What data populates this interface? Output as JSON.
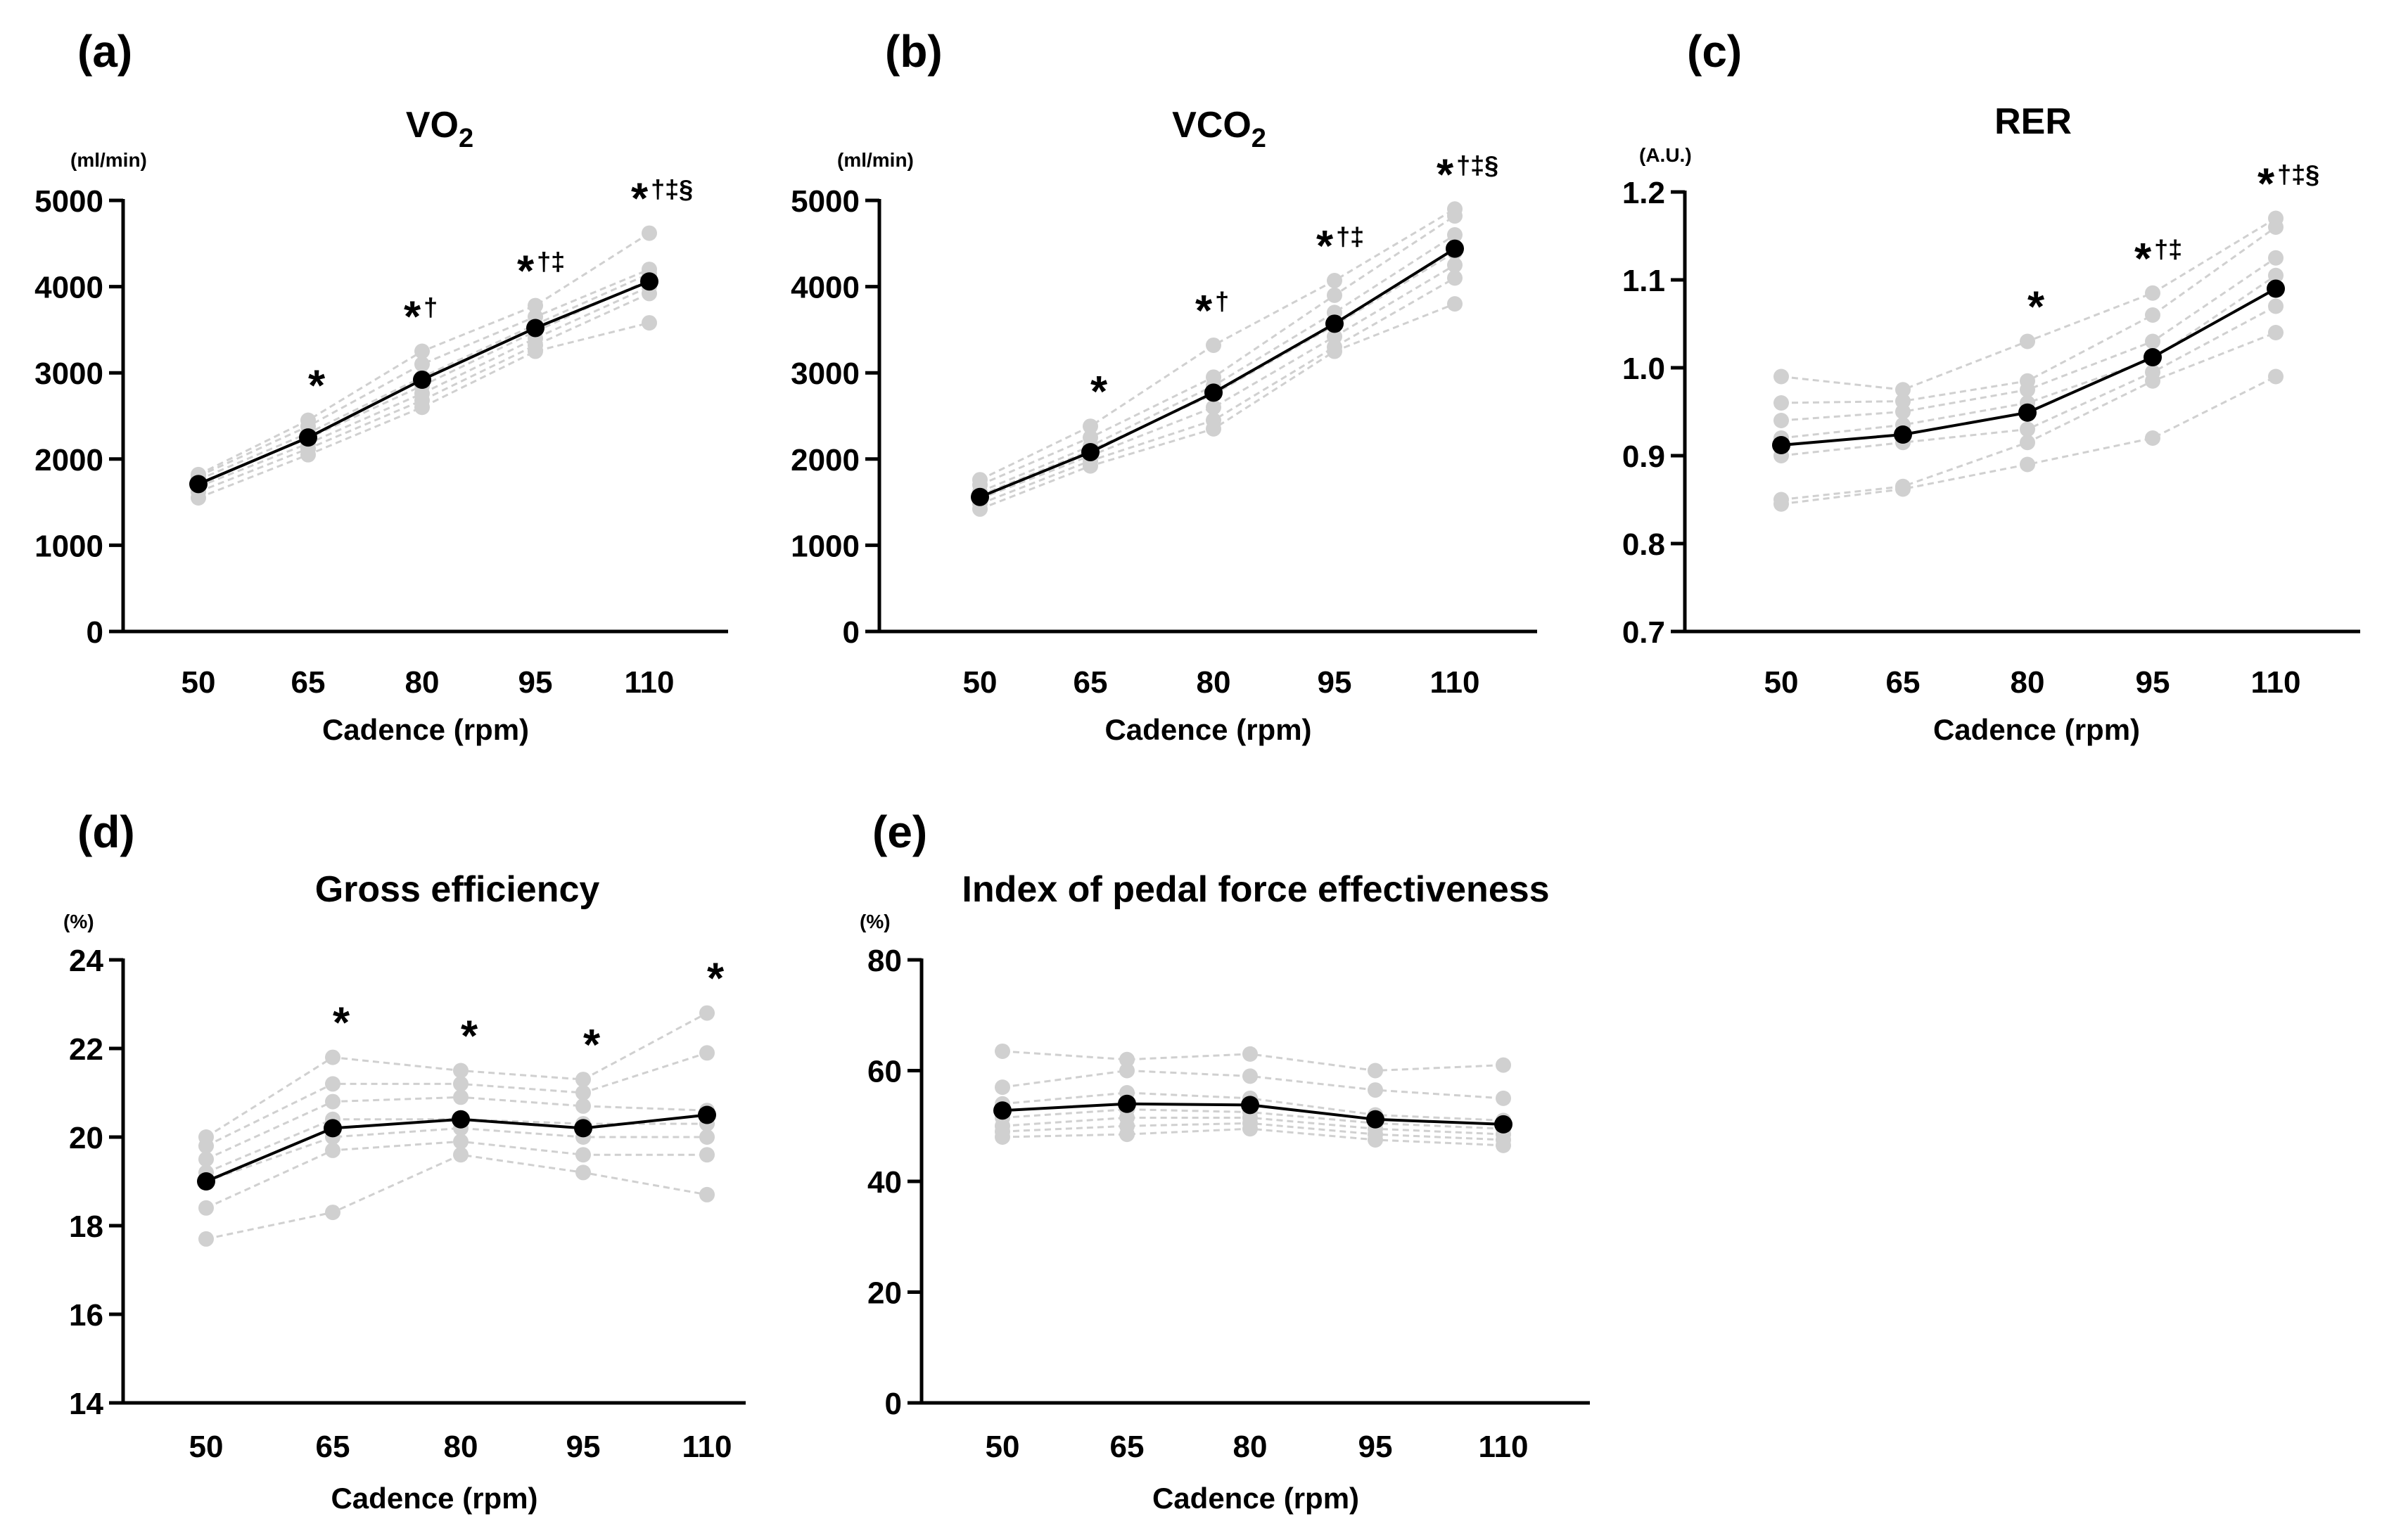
{
  "chart_data": [
    {
      "panel": "(a)",
      "type": "line",
      "title": "VO",
      "title_sub": "2",
      "unit": "(ml/min)",
      "xlabel": "Cadence (rpm)",
      "categories": [
        "50",
        "65",
        "80",
        "95",
        "110"
      ],
      "ylim": [
        0,
        5000
      ],
      "yticks": [
        "0",
        "1000",
        "2000",
        "3000",
        "4000",
        "5000"
      ],
      "mean": [
        1710,
        2250,
        2920,
        3520,
        4060
      ],
      "individuals": [
        [
          1550,
          2050,
          2600,
          3250,
          3580
        ],
        [
          1620,
          2120,
          2680,
          3320,
          3920
        ],
        [
          1680,
          2180,
          2760,
          3400,
          4000
        ],
        [
          1720,
          2240,
          2850,
          3480,
          4080
        ],
        [
          1760,
          2300,
          2950,
          3560,
          4150
        ],
        [
          1800,
          2380,
          3100,
          3650,
          4200
        ],
        [
          1820,
          2450,
          3250,
          3780,
          4620
        ]
      ],
      "annotations": [
        {
          "category": "65",
          "stars": "*",
          "marks": ""
        },
        {
          "category": "80",
          "stars": "*",
          "marks": "†"
        },
        {
          "category": "95",
          "stars": "*",
          "marks": "†‡"
        },
        {
          "category": "110",
          "stars": "*",
          "marks": "†‡§"
        }
      ]
    },
    {
      "panel": "(b)",
      "type": "line",
      "title": "VCO",
      "title_sub": "2",
      "unit": "(ml/min)",
      "xlabel": "Cadence (rpm)",
      "categories": [
        "50",
        "65",
        "80",
        "95",
        "110"
      ],
      "ylim": [
        0,
        5000
      ],
      "yticks": [
        "0",
        "1000",
        "2000",
        "3000",
        "4000",
        "5000"
      ],
      "mean": [
        1560,
        2080,
        2770,
        3570,
        4440
      ],
      "individuals": [
        [
          1420,
          1920,
          2350,
          3250,
          3800
        ],
        [
          1480,
          1980,
          2450,
          3300,
          4100
        ],
        [
          1540,
          2040,
          2600,
          3420,
          4250
        ],
        [
          1580,
          2100,
          2750,
          3550,
          4400
        ],
        [
          1620,
          2150,
          2850,
          3700,
          4600
        ],
        [
          1700,
          2250,
          2950,
          3900,
          4820
        ],
        [
          1760,
          2380,
          3320,
          4070,
          4900
        ]
      ],
      "annotations": [
        {
          "category": "65",
          "stars": "*",
          "marks": ""
        },
        {
          "category": "80",
          "stars": "*",
          "marks": "†"
        },
        {
          "category": "95",
          "stars": "*",
          "marks": "†‡"
        },
        {
          "category": "110",
          "stars": "*",
          "marks": "†‡§"
        }
      ]
    },
    {
      "panel": "(c)",
      "type": "line",
      "title": "RER",
      "title_sub": "",
      "unit": "(A.U.)",
      "xlabel": "Cadence (rpm)",
      "categories": [
        "50",
        "65",
        "80",
        "95",
        "110"
      ],
      "ylim": [
        0.7,
        1.2
      ],
      "yticks": [
        "0.7",
        "0.8",
        "0.9",
        "1.0",
        "1.1",
        "1.2"
      ],
      "mean": [
        0.912,
        0.924,
        0.949,
        1.012,
        1.09
      ],
      "individuals": [
        [
          0.845,
          0.862,
          0.89,
          0.92,
          0.99
        ],
        [
          0.85,
          0.865,
          0.915,
          0.985,
          1.04
        ],
        [
          0.9,
          0.915,
          0.93,
          0.995,
          1.07
        ],
        [
          0.92,
          0.935,
          0.96,
          1.01,
          1.105
        ],
        [
          0.94,
          0.95,
          0.975,
          1.03,
          1.125
        ],
        [
          0.96,
          0.962,
          0.985,
          1.06,
          1.16
        ],
        [
          0.99,
          0.975,
          1.03,
          1.085,
          1.17
        ]
      ],
      "annotations": [
        {
          "category": "80",
          "stars": "*",
          "marks": ""
        },
        {
          "category": "95",
          "stars": "*",
          "marks": "†‡"
        },
        {
          "category": "110",
          "stars": "*",
          "marks": "†‡§"
        }
      ]
    },
    {
      "panel": "(d)",
      "type": "line",
      "title": "Gross efficiency",
      "title_sub": "",
      "unit": "(%)",
      "xlabel": "Cadence (rpm)",
      "categories": [
        "50",
        "65",
        "80",
        "95",
        "110"
      ],
      "ylim": [
        14,
        24
      ],
      "yticks": [
        "14",
        "16",
        "18",
        "20",
        "22",
        "24"
      ],
      "mean": [
        19.0,
        20.2,
        20.4,
        20.2,
        20.5
      ],
      "individuals": [
        [
          17.7,
          18.3,
          19.6,
          19.2,
          18.7
        ],
        [
          18.4,
          19.7,
          19.9,
          19.6,
          19.6
        ],
        [
          19.0,
          20.0,
          20.2,
          20.0,
          20.0
        ],
        [
          19.2,
          20.4,
          20.4,
          20.3,
          20.3
        ],
        [
          19.5,
          20.8,
          20.9,
          20.7,
          20.6
        ],
        [
          19.8,
          21.2,
          21.2,
          21.0,
          21.9
        ],
        [
          20.0,
          21.8,
          21.5,
          21.3,
          22.8
        ]
      ],
      "annotations": [
        {
          "category": "65",
          "stars": "*",
          "marks": ""
        },
        {
          "category": "80",
          "stars": "*",
          "marks": ""
        },
        {
          "category": "95",
          "stars": "*",
          "marks": ""
        },
        {
          "category": "110",
          "stars": "*",
          "marks": ""
        }
      ]
    },
    {
      "panel": "(e)",
      "type": "line",
      "title": "Index of pedal force effectiveness",
      "title_sub": "",
      "unit": "(%)",
      "xlabel": "Cadence (rpm)",
      "categories": [
        "50",
        "65",
        "80",
        "95",
        "110"
      ],
      "ylim": [
        0,
        80
      ],
      "yticks": [
        "0",
        "20",
        "40",
        "60",
        "80"
      ],
      "mean": [
        52.8,
        54.0,
        53.8,
        51.2,
        50.3
      ],
      "individuals": [
        [
          48.0,
          48.5,
          49.5,
          47.5,
          46.5
        ],
        [
          49.0,
          50.0,
          50.5,
          48.5,
          47.5
        ],
        [
          50.0,
          51.5,
          51.5,
          49.5,
          48.5
        ],
        [
          51.5,
          53.0,
          52.5,
          50.5,
          49.5
        ],
        [
          54.0,
          56.0,
          55.0,
          52.0,
          51.0
        ],
        [
          57.0,
          60.0,
          59.0,
          56.5,
          55.0
        ],
        [
          63.5,
          62.0,
          63.0,
          60.0,
          61.0
        ]
      ],
      "annotations": []
    }
  ],
  "colors": {
    "mean": "#000000",
    "individual": "#d0d0d0",
    "axis": "#000000"
  }
}
